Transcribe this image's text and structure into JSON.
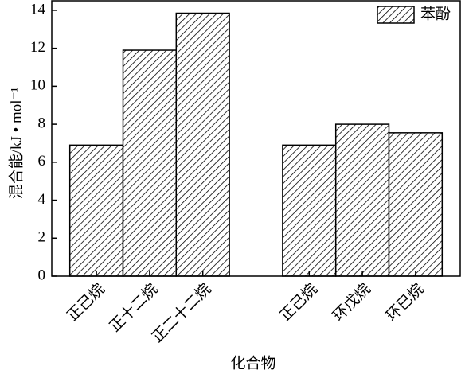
{
  "chart_data": {
    "type": "bar",
    "x_label": "化合物",
    "y_label": "混合能/kJ • mol⁻¹",
    "categories": [
      "正己烷",
      "正十二烷",
      "正二十二烷",
      null,
      "正己烷",
      "环戊烷",
      "环已烷"
    ],
    "series": [
      {
        "name": "苯酚",
        "color": "#000000",
        "values": [
          6.9,
          11.9,
          13.85,
          null,
          6.9,
          8.0,
          7.55
        ]
      }
    ],
    "ylim": [
      0,
      14.5
    ],
    "yticks": [
      0,
      2,
      4,
      6,
      8,
      10,
      12,
      14
    ],
    "legend": "upper right",
    "pattern": "hatch"
  }
}
